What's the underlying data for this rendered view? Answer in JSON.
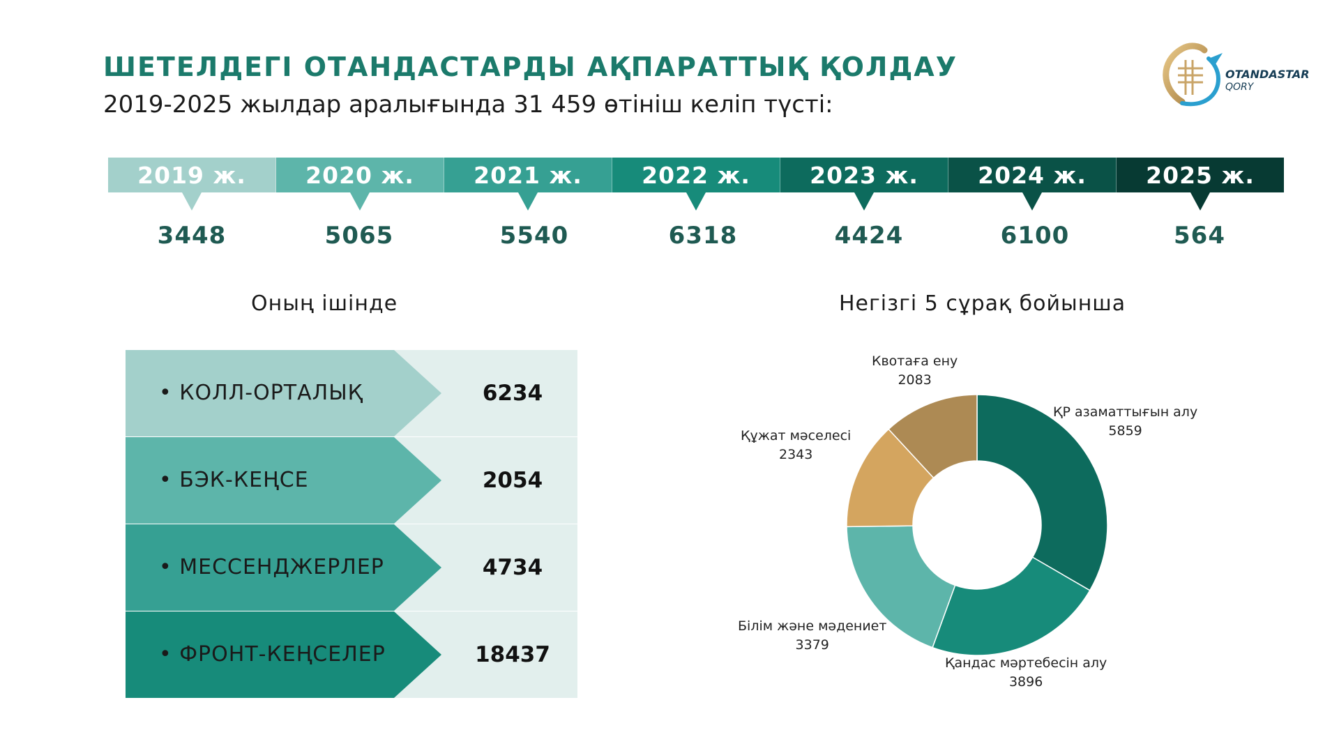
{
  "header": {
    "title": "ШЕТЕЛДЕГІ ОТАНДАСТАРДЫ АҚПАРАТТЫҚ ҚОЛДАУ",
    "subtitle": "2019-2025 жылдар аралығында 31 459 өтініш келіп түсті:"
  },
  "logo": {
    "line1": "OTANDASTAR",
    "line2": "QORY"
  },
  "years": [
    {
      "label": "2019 ж.",
      "value": "3448",
      "color": "#a3d0cb"
    },
    {
      "label": "2020 ж.",
      "value": "5065",
      "color": "#5db5aa"
    },
    {
      "label": "2021 ж.",
      "value": "5540",
      "color": "#36a093"
    },
    {
      "label": "2022 ж.",
      "value": "6318",
      "color": "#178b7a"
    },
    {
      "label": "2023 ж.",
      "value": "4424",
      "color": "#0d6b5d"
    },
    {
      "label": "2024 ж.",
      "value": "6100",
      "color": "#0a5247"
    },
    {
      "label": "2025 ж.",
      "value": "564",
      "color": "#073a33"
    }
  ],
  "channels": {
    "heading": "Оның ішінде",
    "items": [
      {
        "label": "КОЛЛ-ОРТАЛЫҚ",
        "value": "6234",
        "color": "#a3d0cb"
      },
      {
        "label": "БЭК-КЕҢСЕ",
        "value": "2054",
        "color": "#5db5aa"
      },
      {
        "label": "МЕССЕНДЖЕРЛЕР",
        "value": "4734",
        "color": "#36a093"
      },
      {
        "label": "ФРОНТ-КЕҢСЕЛЕР",
        "value": "18437",
        "color": "#178b7a"
      }
    ]
  },
  "chart_data": {
    "type": "pie",
    "title": "Негізгі 5 сұрақ бойынша",
    "donut": true,
    "slices": [
      {
        "label": "ҚР азаматтығын алу",
        "value": 5859,
        "color": "#0d6b5d"
      },
      {
        "label": "Қандас мәртебесін алу",
        "value": 3896,
        "color": "#178b7a"
      },
      {
        "label": "Білім және мәдениет",
        "value": 3379,
        "color": "#5db5aa"
      },
      {
        "label": "Құжат мәселесі",
        "value": 2343,
        "color": "#d4a55f"
      },
      {
        "label": "Квотаға ену",
        "value": 2083,
        "color": "#ad8a54"
      }
    ]
  }
}
